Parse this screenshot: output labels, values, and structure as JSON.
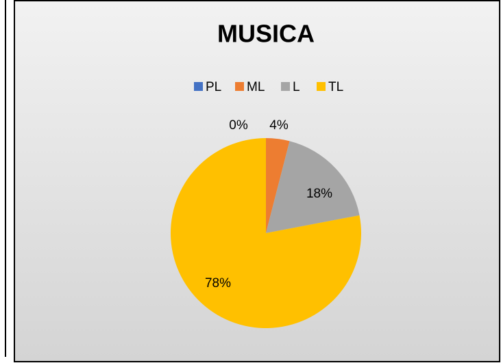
{
  "chart_data": {
    "type": "pie",
    "title": "MUSICA",
    "categories": [
      "PL",
      "ML",
      "L",
      "TL"
    ],
    "values": [
      0,
      4,
      18,
      78
    ],
    "value_labels": [
      "0%",
      "4%",
      "18%",
      "78%"
    ],
    "colors": [
      "#4472c4",
      "#ed7d31",
      "#a5a5a5",
      "#ffc000"
    ],
    "legend": "top"
  }
}
